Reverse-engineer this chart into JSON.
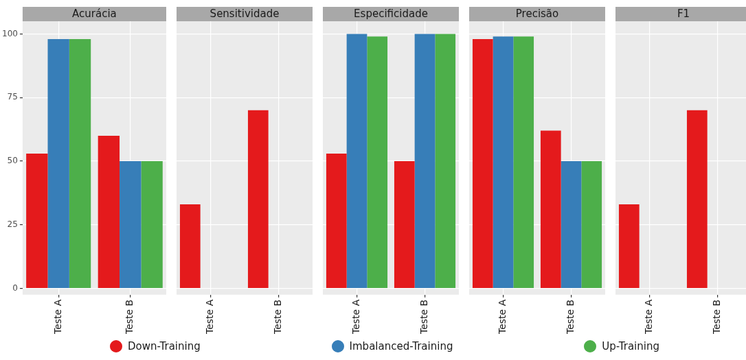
{
  "chart_data": [
    {
      "type": "bar",
      "title": "Acurácia",
      "categories": [
        "Teste A",
        "Teste B"
      ],
      "ylim": [
        -2.5,
        105
      ],
      "yticks": [
        0,
        25,
        50,
        75,
        100
      ],
      "grid": true,
      "legend": "bottom",
      "series": [
        {
          "name": "Down-Training",
          "color": "#e41a1c",
          "values": [
            53,
            60
          ]
        },
        {
          "name": "Imbalanced-Training",
          "color": "#377eb8",
          "values": [
            98,
            50
          ]
        },
        {
          "name": "Up-Training",
          "color": "#4daf4a",
          "values": [
            98,
            50
          ]
        }
      ]
    },
    {
      "type": "bar",
      "title": "Sensitividade",
      "categories": [
        "Teste A",
        "Teste B"
      ],
      "ylim": [
        -2.5,
        105
      ],
      "yticks": [
        0,
        25,
        50,
        75,
        100
      ],
      "grid": true,
      "tick_labels": "x",
      "series": [
        {
          "color": "#e41a1c",
          "values": [
            33,
            70
          ]
        },
        {
          "color": "#377eb8",
          "values": [
            null,
            null
          ]
        },
        {
          "color": "#4daf4a",
          "values": [
            null,
            null
          ]
        }
      ]
    },
    {
      "type": "bar",
      "title": "Especificidade",
      "categories": [
        "Teste A",
        "Teste B"
      ],
      "ylim": [
        -2.5,
        105
      ],
      "yticks": [
        0,
        25,
        50,
        75,
        100
      ],
      "grid": true,
      "tick_labels": "x",
      "series": [
        {
          "color": "#e41a1c",
          "values": [
            53,
            50
          ]
        },
        {
          "color": "#377eb8",
          "values": [
            100,
            100
          ]
        },
        {
          "color": "#4daf4a",
          "values": [
            99,
            100
          ]
        }
      ]
    },
    {
      "type": "bar",
      "title": "Precisão",
      "categories": [
        "Teste A",
        "Teste B"
      ],
      "ylim": [
        -2.5,
        105
      ],
      "yticks": [
        0,
        25,
        50,
        75,
        100
      ],
      "grid": true,
      "tick_labels": "x",
      "series": [
        {
          "color": "#e41a1c",
          "values": [
            98,
            62
          ]
        },
        {
          "color": "#377eb8",
          "values": [
            99,
            50
          ]
        },
        {
          "color": "#4daf4a",
          "values": [
            99,
            50
          ]
        }
      ]
    },
    {
      "type": "bar",
      "title": "F1",
      "categories": [
        "Teste A",
        "Teste B"
      ],
      "ylim": [
        -2.5,
        105
      ],
      "yticks": [
        0,
        25,
        50,
        75,
        100
      ],
      "grid": true,
      "tick_labels": "x",
      "series": [
        {
          "color": "#e41a1c",
          "values": [
            33,
            70
          ]
        },
        {
          "color": "#377eb8",
          "values": [
            null,
            null
          ]
        },
        {
          "color": "#4daf4a",
          "values": [
            null,
            null
          ]
        }
      ]
    }
  ]
}
